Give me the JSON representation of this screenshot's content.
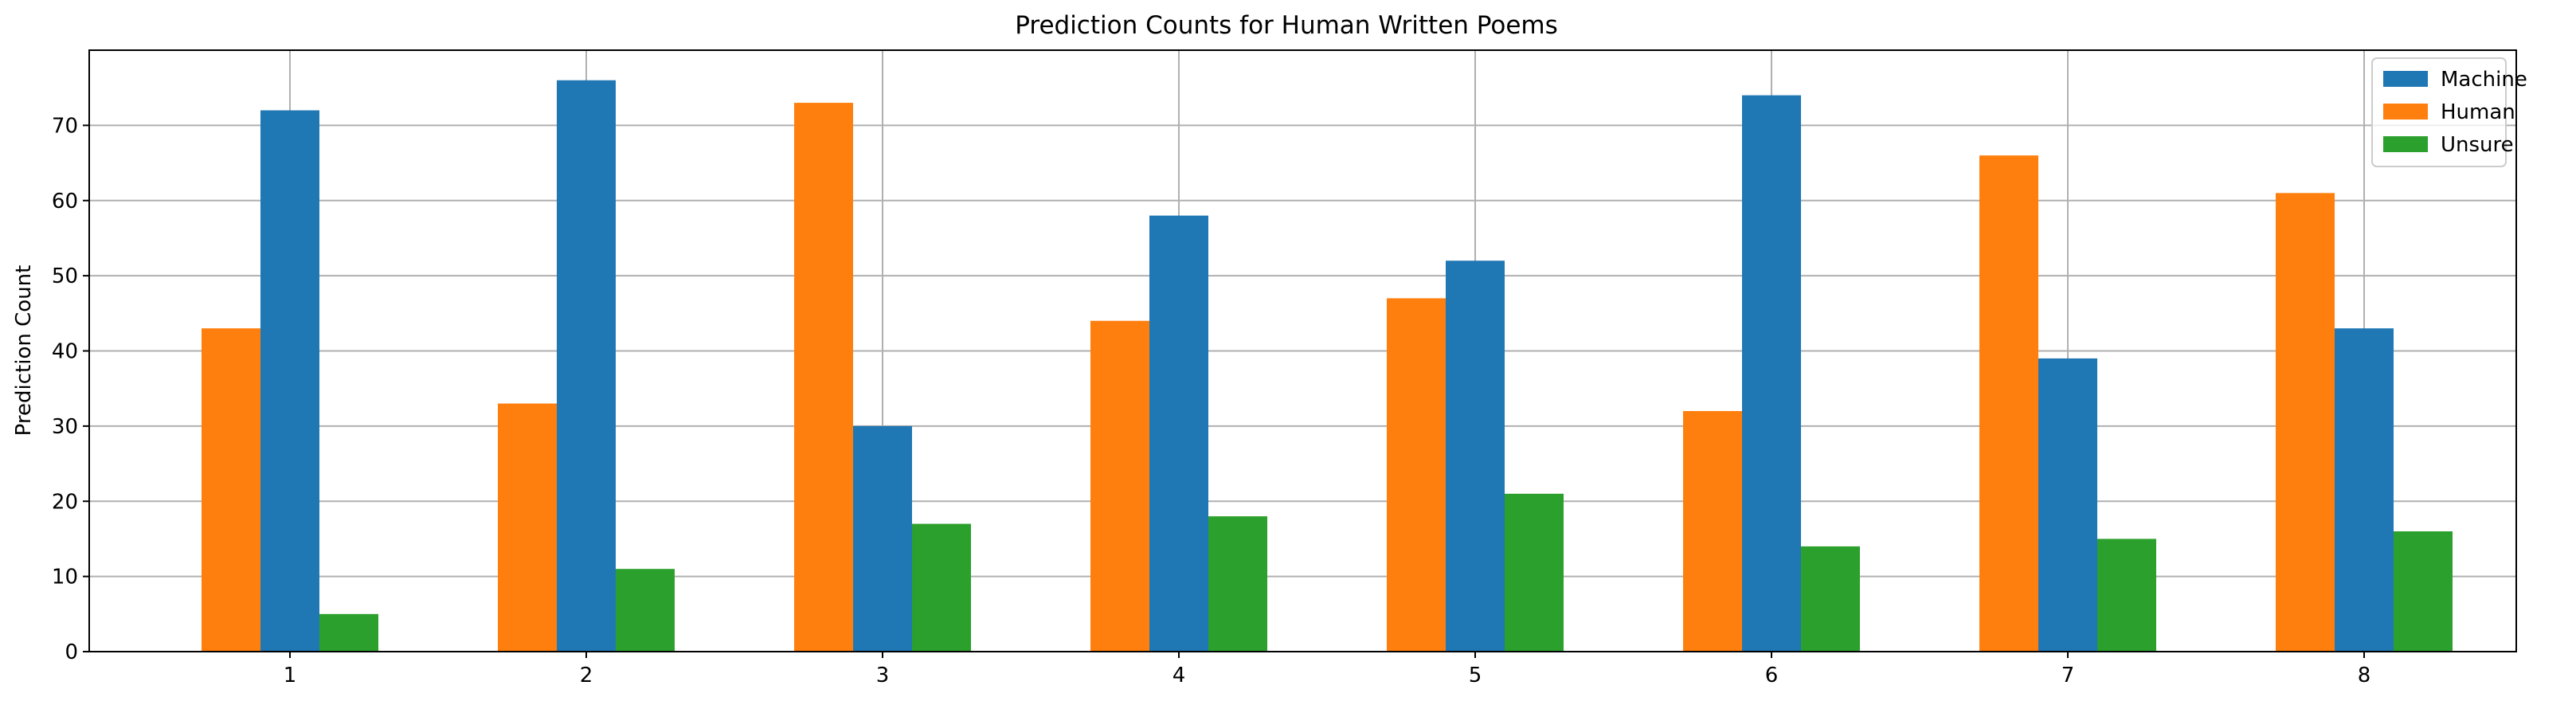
{
  "chart_data": {
    "type": "bar",
    "title": "Prediction Counts for Human Written Poems",
    "xlabel": "",
    "ylabel": "Prediction Count",
    "categories": [
      "1",
      "2",
      "3",
      "4",
      "5",
      "6",
      "7",
      "8"
    ],
    "series": [
      {
        "name": "Human",
        "color": "#ff7f0e",
        "values": [
          43,
          33,
          73,
          44,
          47,
          32,
          66,
          61
        ]
      },
      {
        "name": "Machine",
        "color": "#1f77b4",
        "values": [
          72,
          76,
          30,
          58,
          52,
          74,
          39,
          43
        ]
      },
      {
        "name": "Unsure",
        "color": "#2ca02c",
        "values": [
          5,
          11,
          17,
          18,
          21,
          14,
          15,
          16
        ]
      }
    ],
    "legend_order": [
      "Machine",
      "Human",
      "Unsure"
    ],
    "legend_position": "top-right",
    "ylim": [
      0,
      80
    ],
    "yticks": [
      0,
      10,
      20,
      30,
      40,
      50,
      60,
      70
    ],
    "grid": true
  }
}
